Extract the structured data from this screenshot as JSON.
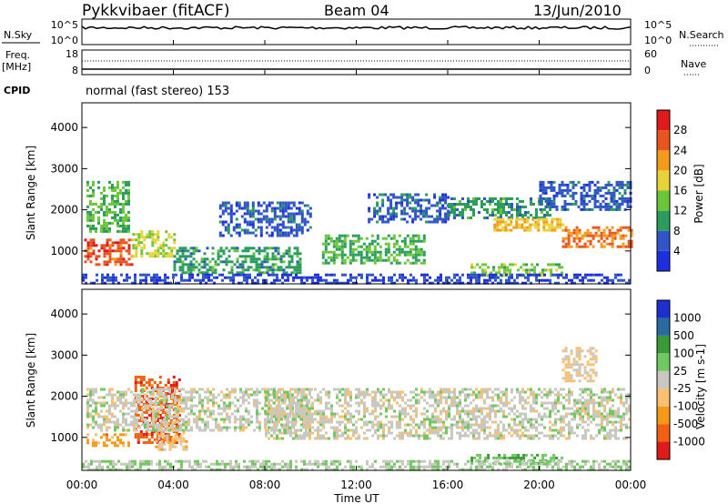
{
  "header": {
    "station": "Pykkvibaer (fitACF)",
    "beam": "Beam 04",
    "date": "13/Jun/2010"
  },
  "side_labels": {
    "nsky": "N.Sky",
    "nsearch": "N.Search",
    "freq_line1": "Freq.",
    "freq_line2": "[MHz]",
    "nave": "Nave",
    "cpid": "CPID",
    "cpid_value": "normal (fast stereo) 153"
  },
  "noise_panel": {
    "left_ticks": [
      "10^5",
      "10^0"
    ],
    "right_ticks": [
      "10^5",
      "10^0"
    ]
  },
  "freq_panel": {
    "left_ticks": [
      "18",
      "8"
    ],
    "right_ticks": [
      "60",
      "0"
    ]
  },
  "colors": {
    "power_scale": [
      "#1e2fe0",
      "#2f55c8",
      "#2a9d5c",
      "#6cc63a",
      "#e8d23a",
      "#f39a1c",
      "#e9551e",
      "#e01a1a"
    ],
    "velocity_scale": [
      "#e01a1a",
      "#f06010",
      "#f59a18",
      "#f8c070",
      "#c8c8c0",
      "#70c860",
      "#3a9a3a",
      "#2a6aa0",
      "#1e2fd0"
    ]
  },
  "chart_data": [
    {
      "type": "heatmap",
      "title": "",
      "xlabel": "",
      "ylabel": "Slant Range [km]",
      "x_ticks": [
        "00:00",
        "04:00",
        "08:00",
        "12:00",
        "16:00",
        "20:00",
        "00:00"
      ],
      "y_ticks": [
        "1000",
        "2000",
        "3000",
        "4000"
      ],
      "ylim": [
        200,
        4600
      ],
      "colorbar": {
        "label": "Power [dB]",
        "ticks": [
          "4",
          "8",
          "12",
          "16",
          "20",
          "24",
          "28"
        ],
        "range": [
          0,
          32
        ]
      },
      "regions": [
        {
          "x": [
            0.1,
            2.2
          ],
          "y": [
            700,
            1300
          ],
          "value": 26
        },
        {
          "x": [
            2.2,
            4.0
          ],
          "y": [
            900,
            1500
          ],
          "value": 16
        },
        {
          "x": [
            0.2,
            2.0
          ],
          "y": [
            1500,
            2700
          ],
          "value": 12
        },
        {
          "x": [
            4.0,
            9.5
          ],
          "y": [
            500,
            1100
          ],
          "value": 10
        },
        {
          "x": [
            6.0,
            10.0
          ],
          "y": [
            1400,
            2200
          ],
          "value": 6
        },
        {
          "x": [
            10.5,
            15.0
          ],
          "y": [
            700,
            1400
          ],
          "value": 12
        },
        {
          "x": [
            12.5,
            16.0
          ],
          "y": [
            1700,
            2400
          ],
          "value": 6
        },
        {
          "x": [
            16.0,
            20.5
          ],
          "y": [
            1800,
            2300
          ],
          "value": 10
        },
        {
          "x": [
            18.0,
            21.0
          ],
          "y": [
            1500,
            1800
          ],
          "value": 20
        },
        {
          "x": [
            21.0,
            24.0
          ],
          "y": [
            1100,
            1600
          ],
          "value": 24
        },
        {
          "x": [
            20.0,
            24.0
          ],
          "y": [
            2000,
            2700
          ],
          "value": 6
        },
        {
          "x": [
            17.0,
            21.0
          ],
          "y": [
            400,
            700
          ],
          "value": 14
        },
        {
          "x": [
            0.0,
            24.0
          ],
          "y": [
            200,
            450
          ],
          "value": 4
        }
      ]
    },
    {
      "type": "heatmap",
      "title": "",
      "xlabel": "Time UT",
      "ylabel": "Slant Range [km]",
      "x_ticks": [
        "00:00",
        "04:00",
        "08:00",
        "12:00",
        "16:00",
        "20:00",
        "00:00"
      ],
      "y_ticks": [
        "1000",
        "2000",
        "3000",
        "4000"
      ],
      "ylim": [
        200,
        4600
      ],
      "colorbar": {
        "label": "Velocity [m s-1]",
        "ticks": [
          "1000",
          "500",
          "100",
          "25",
          "-25",
          "-100",
          "-500",
          "-1000"
        ],
        "range": [
          -1000,
          1000
        ]
      },
      "regions": [
        {
          "x": [
            0.2,
            2.0
          ],
          "y": [
            800,
            1100
          ],
          "value": -400
        },
        {
          "x": [
            2.3,
            4.3
          ],
          "y": [
            900,
            2500
          ],
          "value": -700
        },
        {
          "x": [
            3.2,
            4.6
          ],
          "y": [
            700,
            1400
          ],
          "value": -200
        },
        {
          "x": [
            0.2,
            10.0
          ],
          "y": [
            1200,
            2200
          ],
          "value": 0
        },
        {
          "x": [
            8.0,
            24.0
          ],
          "y": [
            1000,
            2200
          ],
          "value": 0
        },
        {
          "x": [
            17.0,
            21.0
          ],
          "y": [
            400,
            600
          ],
          "value": 300
        },
        {
          "x": [
            21.0,
            22.5
          ],
          "y": [
            2400,
            3200
          ],
          "value": -150
        },
        {
          "x": [
            0.0,
            24.0
          ],
          "y": [
            200,
            450
          ],
          "value": 80
        }
      ]
    }
  ],
  "footer": {
    "time_label": "Time UT"
  }
}
